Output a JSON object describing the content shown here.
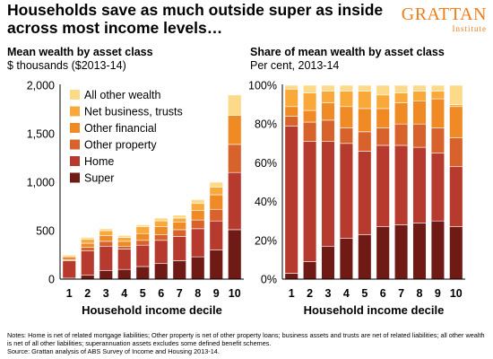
{
  "headline": "Households save as much outside super as inside across most income levels…",
  "logo": {
    "name": "GRATTAN",
    "sub": "Institute"
  },
  "colors": {
    "All other wealth": "#fdd98a",
    "Net business, trusts": "#f9a93a",
    "Other financial": "#f08a24",
    "Other property": "#d8622b",
    "Home": "#b73a2f",
    "Super": "#6f1a14"
  },
  "chart_data": [
    {
      "type": "bar",
      "stacked": true,
      "title": "Mean wealth by asset class",
      "subtitle": "$ thousands ($2013-14)",
      "xlabel": "Household income decile",
      "categories": [
        "1",
        "2",
        "3",
        "4",
        "5",
        "6",
        "7",
        "8",
        "9",
        "10"
      ],
      "ylim": [
        0,
        2000
      ],
      "yticks": [
        "0",
        "500",
        "1,000",
        "1,500",
        "2,000"
      ],
      "ytick_values": [
        0,
        500,
        1000,
        1500,
        2000
      ],
      "legend_position": "top-left",
      "legend": [
        "All other wealth",
        "Net business, trusts",
        "Other financial",
        "Other property",
        "Home",
        "Super"
      ],
      "series": [
        {
          "name": "Super",
          "values": [
            10,
            40,
            90,
            100,
            130,
            160,
            190,
            230,
            300,
            510
          ]
        },
        {
          "name": "Home",
          "values": [
            180,
            250,
            250,
            210,
            220,
            240,
            250,
            290,
            300,
            590
          ]
        },
        {
          "name": "Other property",
          "values": [
            10,
            40,
            50,
            30,
            50,
            60,
            70,
            90,
            120,
            290
          ]
        },
        {
          "name": "Other financial",
          "values": [
            30,
            40,
            60,
            50,
            70,
            80,
            80,
            100,
            150,
            300
          ]
        },
        {
          "name": "Net business, trusts",
          "values": [
            10,
            40,
            50,
            40,
            70,
            60,
            40,
            70,
            80,
            0
          ]
        },
        {
          "name": "All other wealth",
          "values": [
            10,
            20,
            20,
            20,
            20,
            30,
            30,
            40,
            50,
            210
          ]
        }
      ]
    },
    {
      "type": "bar",
      "stacked": true,
      "title": "Share of mean wealth by asset class",
      "subtitle": "Per cent, 2013-14",
      "xlabel": "Household income decile",
      "categories": [
        "1",
        "2",
        "3",
        "4",
        "5",
        "6",
        "7",
        "8",
        "9",
        "10"
      ],
      "ylim": [
        0,
        100
      ],
      "yticks": [
        "0%",
        "20%",
        "40%",
        "60%",
        "80%",
        "100%"
      ],
      "ytick_values": [
        0,
        20,
        40,
        60,
        80,
        100
      ],
      "series": [
        {
          "name": "Super",
          "values": [
            3,
            9,
            17,
            21,
            23,
            27,
            28,
            29,
            30,
            27
          ]
        },
        {
          "name": "Home",
          "values": [
            76,
            62,
            54,
            49,
            43,
            42,
            41,
            39,
            35,
            31
          ]
        },
        {
          "name": "Other property",
          "values": [
            5,
            10,
            11,
            8,
            10,
            9,
            11,
            12,
            13,
            15
          ]
        },
        {
          "name": "Other financial",
          "values": [
            5,
            6,
            9,
            11,
            12,
            10,
            11,
            12,
            15,
            16
          ]
        },
        {
          "name": "Net business, trusts",
          "values": [
            9,
            9,
            6,
            8,
            9,
            7,
            5,
            5,
            4,
            1
          ]
        },
        {
          "name": "All other wealth",
          "values": [
            2,
            4,
            3,
            3,
            3,
            5,
            4,
            3,
            3,
            10
          ]
        }
      ]
    }
  ],
  "notes": [
    "Notes: Home is net of related mortgage liabilities; Other property is net of other property loans; business assets and trusts are net of related liabilities; all other wealth is net of all other liabilities; superannuation assets excludes some defined benefit schemes.",
    "Source: Grattan analysis of ABS Survey of Income and Housing 2013-14."
  ]
}
